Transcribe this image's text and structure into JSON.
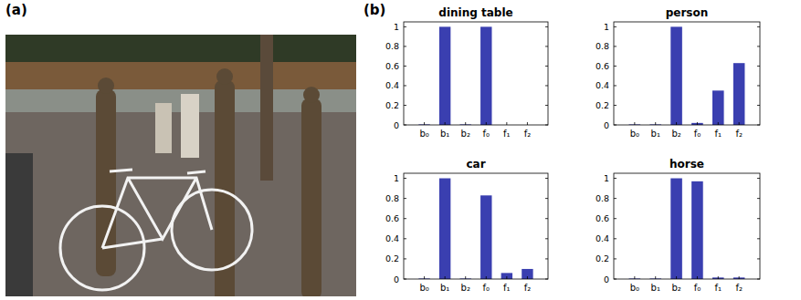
{
  "panel_labels": [
    "(a)",
    "(b)"
  ],
  "chart_data": [
    {
      "type": "bar",
      "title": "dining table",
      "categories": [
        "b₀",
        "b₁",
        "b₂",
        "f₀",
        "f₁",
        "f₂"
      ],
      "values": [
        0.005,
        1,
        0.005,
        1,
        0,
        0
      ],
      "color": "#3a3fb0",
      "ylim": [
        0,
        1.05
      ],
      "yticks": [
        0,
        0.2,
        0.4,
        0.6,
        0.8,
        1
      ]
    },
    {
      "type": "bar",
      "title": "person",
      "categories": [
        "b₀",
        "b₁",
        "b₂",
        "f₀",
        "f₁",
        "f₂"
      ],
      "values": [
        0.005,
        0.005,
        1,
        0.02,
        0.35,
        0.63
      ],
      "color": "#3a3fb0",
      "ylim": [
        0,
        1.05
      ],
      "yticks": [
        0,
        0.2,
        0.4,
        0.6,
        0.8,
        1
      ]
    },
    {
      "type": "bar",
      "title": "car",
      "categories": [
        "b₀",
        "b₁",
        "b₂",
        "f₀",
        "f₁",
        "f₂"
      ],
      "values": [
        0.005,
        1,
        0.005,
        0.83,
        0.06,
        0.1
      ],
      "color": "#3a3fb0",
      "ylim": [
        0,
        1.05
      ],
      "yticks": [
        0,
        0.2,
        0.4,
        0.6,
        0.8,
        1
      ]
    },
    {
      "type": "bar",
      "title": "horse",
      "categories": [
        "b₀",
        "b₁",
        "b₂",
        "f₀",
        "f₁",
        "f₂"
      ],
      "values": [
        0.005,
        0.005,
        1,
        0.97,
        0.015,
        0.015
      ],
      "color": "#3a3fb0",
      "ylim": [
        0,
        1.05
      ],
      "yticks": [
        0,
        0.2,
        0.4,
        0.6,
        0.8,
        1
      ]
    }
  ]
}
